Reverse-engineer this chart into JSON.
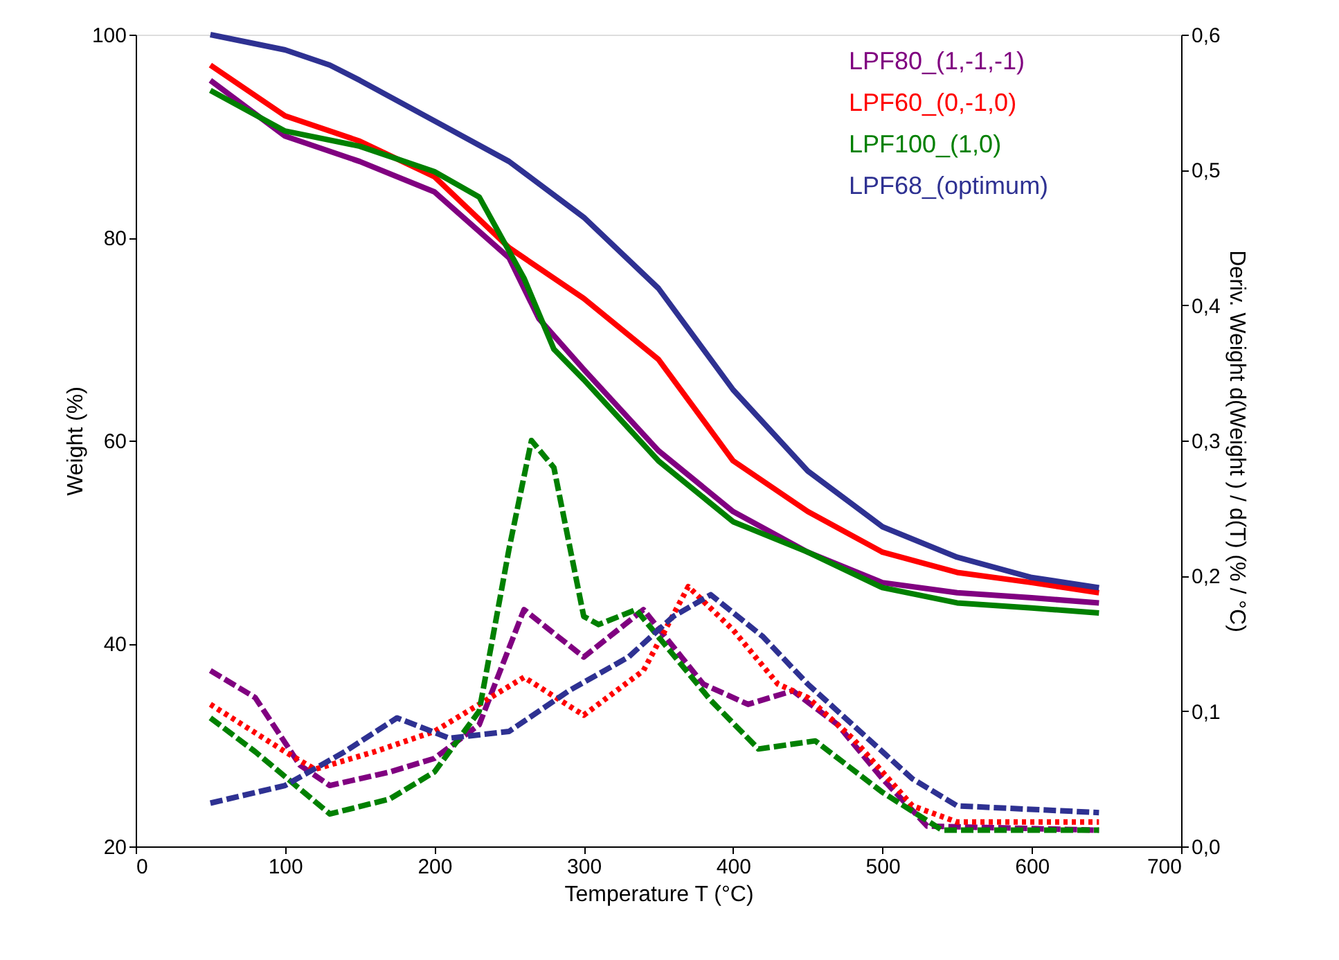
{
  "chart_data": {
    "type": "line",
    "xlabel": "Temperature T (°C)",
    "ylabel": "Weight  (%)",
    "y2label": "Deriv. Weight d(Weight ) / d(T)  (% / °C)",
    "xlim": [
      0,
      700
    ],
    "xticks": [
      0,
      100,
      200,
      300,
      400,
      500,
      600,
      700
    ],
    "ylim": [
      20,
      100
    ],
    "yticks": [
      20,
      40,
      60,
      80,
      100
    ],
    "y2lim": [
      0,
      0.6
    ],
    "y2ticks": [
      {
        "value": 0,
        "label": "0,0"
      },
      {
        "value": 0.1,
        "label": "0,1"
      },
      {
        "value": 0.2,
        "label": "0,2"
      },
      {
        "value": 0.3,
        "label": "0,3"
      },
      {
        "value": 0.4,
        "label": "0,4"
      },
      {
        "value": 0.5,
        "label": "0,5"
      },
      {
        "value": 0.6,
        "label": "0,6"
      }
    ],
    "legend": "top right",
    "grid": false,
    "marker": "none",
    "series": [
      {
        "name": "LPF80_(1,-1,-1)",
        "color": "#800080",
        "line_style": "solid",
        "x": [
          50,
          100,
          150,
          200,
          250,
          270,
          300,
          350,
          400,
          450,
          500,
          550,
          600,
          645
        ],
        "values": [
          95.5,
          90,
          87.5,
          84.5,
          78,
          72,
          67,
          59,
          53,
          49,
          46,
          45,
          44.5,
          44
        ]
      },
      {
        "name": "LPF60_(0,-1,0)",
        "color": "#ff0000",
        "line_style": "solid",
        "x": [
          50,
          100,
          150,
          200,
          250,
          300,
          350,
          400,
          450,
          500,
          550,
          600,
          645
        ],
        "values": [
          97,
          92,
          89.5,
          86,
          79,
          74,
          68,
          58,
          53,
          49,
          47,
          46,
          45
        ]
      },
      {
        "name": "LPF100_(1,0)",
        "color": "#008000",
        "line_style": "solid",
        "x": [
          50,
          100,
          150,
          200,
          230,
          260,
          280,
          300,
          350,
          400,
          450,
          500,
          550,
          600,
          645
        ],
        "values": [
          94.5,
          90.5,
          89,
          86.5,
          84,
          76,
          69,
          66,
          58,
          52,
          49,
          45.5,
          44,
          43.5,
          43
        ]
      },
      {
        "name": "LPF68_(optimum)",
        "color": "#2e3192",
        "line_style": "solid",
        "x": [
          50,
          100,
          130,
          150,
          200,
          250,
          300,
          350,
          400,
          450,
          500,
          550,
          600,
          645
        ],
        "values": [
          100,
          98.5,
          97,
          95.5,
          91.5,
          87.5,
          82,
          75,
          65,
          57,
          51.5,
          48.5,
          46.5,
          45.5
        ]
      },
      {
        "color": "#800080",
        "line_style": "dashed",
        "axis": "y2",
        "x": [
          50,
          80,
          110,
          130,
          170,
          200,
          230,
          260,
          300,
          340,
          380,
          410,
          440,
          470,
          500,
          530,
          645
        ],
        "values": [
          0.13,
          0.11,
          0.06,
          0.045,
          0.055,
          0.065,
          0.09,
          0.175,
          0.14,
          0.175,
          0.12,
          0.105,
          0.115,
          0.09,
          0.05,
          0.015,
          0.012
        ]
      },
      {
        "color": "#ff0000",
        "line_style": "dotted",
        "axis": "y2",
        "x": [
          50,
          100,
          120,
          160,
          200,
          260,
          300,
          340,
          370,
          400,
          430,
          450,
          480,
          520,
          550,
          645
        ],
        "values": [
          0.105,
          0.07,
          0.057,
          0.07,
          0.085,
          0.125,
          0.097,
          0.13,
          0.192,
          0.16,
          0.12,
          0.11,
          0.08,
          0.03,
          0.018,
          0.018
        ]
      },
      {
        "color": "#008000",
        "line_style": "dashed",
        "axis": "y2",
        "x": [
          50,
          80,
          130,
          170,
          200,
          230,
          250,
          265,
          280,
          300,
          310,
          335,
          385,
          417,
          455,
          500,
          540,
          645
        ],
        "values": [
          0.095,
          0.07,
          0.024,
          0.035,
          0.055,
          0.1,
          0.22,
          0.3,
          0.28,
          0.17,
          0.164,
          0.175,
          0.108,
          0.072,
          0.078,
          0.04,
          0.012,
          0.012
        ]
      },
      {
        "color": "#2e3192",
        "line_style": "dashed",
        "axis": "y2",
        "x": [
          50,
          100,
          140,
          175,
          210,
          250,
          290,
          330,
          360,
          385,
          420,
          450,
          480,
          520,
          550,
          645
        ],
        "values": [
          0.032,
          0.045,
          0.07,
          0.095,
          0.08,
          0.085,
          0.115,
          0.14,
          0.17,
          0.186,
          0.155,
          0.12,
          0.09,
          0.05,
          0.03,
          0.025
        ]
      }
    ]
  }
}
